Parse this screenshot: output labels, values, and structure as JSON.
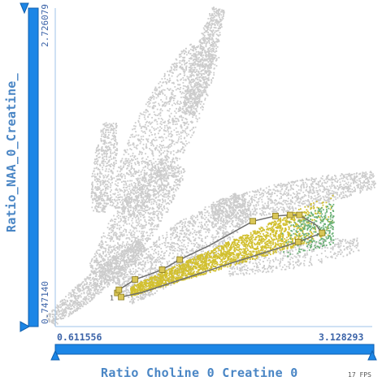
{
  "y_axis": {
    "label": "Ratio_NAA_0_Creatine_",
    "max_label": "2.726079",
    "min_label": "0.747140"
  },
  "x_axis": {
    "label": "Ratio Choline 0 Creatine 0",
    "min_label": "0.611556",
    "max_label": "3.128293"
  },
  "fps_label": "17 FPS",
  "point_label": "1",
  "colors": {
    "slider": "#1c86e6",
    "slider_outline": "#0f5fae",
    "axis_line": "#9fc3e8",
    "background_points": "#cccccc",
    "selected_points": "#d2c030",
    "other_points": "#6ab076",
    "lasso_line": "#6e6e6e",
    "handle_fill": "#d9c657",
    "handle_stroke": "#8a7a1e"
  },
  "chart_data": {
    "type": "scatter",
    "xlabel": "Ratio Choline 0 Creatine 0",
    "ylabel": "Ratio_NAA_0_Creatine_",
    "xlim": [
      0.611556,
      3.128293
    ],
    "ylim": [
      0.74714,
      2.726079
    ],
    "series": [
      {
        "color": "#cccccc",
        "points": []
      },
      {
        "color": "#d2c030",
        "points": []
      },
      {
        "color": "#6ab076",
        "points": []
      }
    ],
    "lasso_polygon": [
      [
        1.104,
        0.956
      ],
      [
        1.117,
        0.976
      ],
      [
        1.245,
        1.04
      ],
      [
        1.33,
        1.063
      ],
      [
        1.46,
        1.101
      ],
      [
        1.6,
        1.163
      ],
      [
        1.83,
        1.249
      ],
      [
        2.18,
        1.402
      ],
      [
        2.36,
        1.434
      ],
      [
        2.475,
        1.441
      ],
      [
        2.55,
        1.441
      ],
      [
        2.68,
        1.38
      ],
      [
        2.73,
        1.329
      ],
      [
        2.54,
        1.273
      ],
      [
        1.95,
        1.127
      ],
      [
        1.3,
        0.959
      ],
      [
        1.135,
        0.931
      ]
    ],
    "lasso_handles": [
      [
        1.104,
        0.956
      ],
      [
        1.117,
        0.976
      ],
      [
        1.245,
        1.04
      ],
      [
        1.46,
        1.101
      ],
      [
        1.6,
        1.163
      ],
      [
        2.18,
        1.402
      ],
      [
        2.36,
        1.434
      ],
      [
        2.475,
        1.441
      ],
      [
        2.55,
        1.441
      ],
      [
        2.73,
        1.329
      ],
      [
        2.54,
        1.273
      ],
      [
        1.135,
        0.931
      ]
    ]
  }
}
